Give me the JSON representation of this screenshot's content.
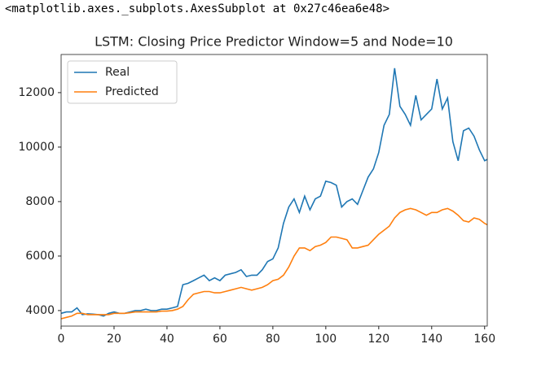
{
  "output_text": "<matplotlib.axes._subplots.AxesSubplot at 0x27c46ea6e48>",
  "chart_data": {
    "type": "line",
    "title": "LSTM: Closing Price Predictor Window=5 and Node=10",
    "x": [
      0,
      2,
      4,
      6,
      8,
      10,
      12,
      14,
      16,
      18,
      20,
      22,
      24,
      26,
      28,
      30,
      32,
      34,
      36,
      38,
      40,
      42,
      44,
      46,
      48,
      50,
      52,
      54,
      56,
      58,
      60,
      62,
      64,
      66,
      68,
      70,
      72,
      74,
      76,
      78,
      80,
      82,
      84,
      86,
      88,
      90,
      92,
      94,
      96,
      98,
      100,
      102,
      104,
      106,
      108,
      110,
      112,
      114,
      116,
      118,
      120,
      122,
      124,
      126,
      128,
      130,
      132,
      134,
      136,
      138,
      140,
      142,
      144,
      146,
      148,
      150,
      152,
      154,
      156,
      158,
      160,
      161
    ],
    "series": [
      {
        "name": "Real",
        "color": "#1f77b4",
        "values": [
          3900,
          3950,
          3950,
          4100,
          3850,
          3880,
          3870,
          3850,
          3800,
          3900,
          3950,
          3900,
          3900,
          3950,
          4000,
          4000,
          4050,
          4000,
          4000,
          4050,
          4050,
          4100,
          4150,
          4950,
          5000,
          5100,
          5200,
          5300,
          5100,
          5200,
          5100,
          5300,
          5350,
          5400,
          5500,
          5250,
          5300,
          5300,
          5500,
          5800,
          5900,
          6300,
          7200,
          7800,
          8100,
          7600,
          8200,
          7700,
          8100,
          8200,
          8750,
          8700,
          8600,
          7800,
          8000,
          8100,
          7900,
          8400,
          8900,
          9200,
          9800,
          10800,
          11200,
          12900,
          11500,
          11200,
          10800,
          11900,
          11000,
          11200,
          11400,
          12500,
          11400,
          11800,
          10200,
          9500,
          10600,
          10700,
          10400,
          9900,
          9500,
          9550
        ]
      },
      {
        "name": "Predicted",
        "color": "#ff7f0e",
        "values": [
          3700,
          3750,
          3800,
          3900,
          3900,
          3850,
          3850,
          3850,
          3850,
          3850,
          3900,
          3900,
          3900,
          3920,
          3950,
          3950,
          3950,
          3950,
          3950,
          3980,
          3980,
          4000,
          4050,
          4150,
          4400,
          4600,
          4650,
          4700,
          4700,
          4650,
          4650,
          4700,
          4750,
          4800,
          4850,
          4800,
          4750,
          4800,
          4850,
          4950,
          5100,
          5150,
          5300,
          5600,
          6000,
          6300,
          6300,
          6200,
          6350,
          6400,
          6500,
          6700,
          6700,
          6650,
          6600,
          6300,
          6300,
          6350,
          6400,
          6600,
          6800,
          6950,
          7100,
          7400,
          7600,
          7700,
          7750,
          7700,
          7600,
          7500,
          7600,
          7600,
          7700,
          7750,
          7650,
          7500,
          7300,
          7250,
          7400,
          7350,
          7200,
          7150
        ]
      }
    ],
    "xlim": [
      0,
      161
    ],
    "ylim": [
      3430,
      13400
    ],
    "xticks": [
      0,
      20,
      40,
      60,
      80,
      100,
      120,
      140,
      160
    ],
    "yticks": [
      4000,
      6000,
      8000,
      10000,
      12000
    ],
    "legend": "upper left"
  }
}
